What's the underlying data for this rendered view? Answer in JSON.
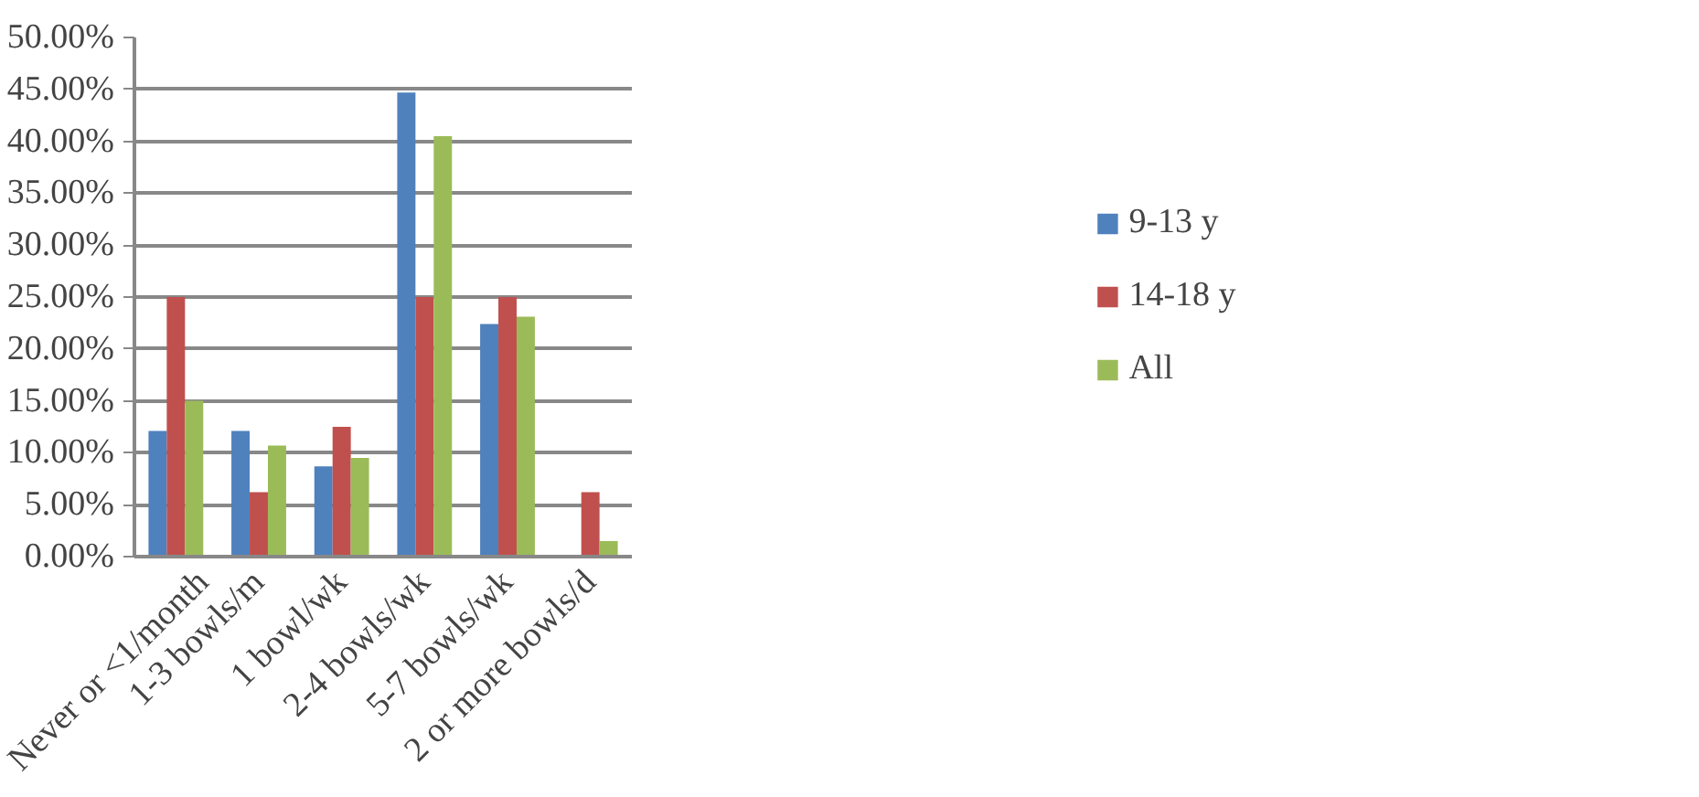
{
  "chart_data": {
    "type": "bar",
    "categories": [
      "Never or <1/month",
      "1-3 bowls/m",
      "1 bowl/wk",
      "2-4 bowls/wk",
      "5-7 bowls/wk",
      "2 or more bowls/d"
    ],
    "series": [
      {
        "name": "9-13 y",
        "color": "#4f81bd",
        "values": [
          12.1,
          12.1,
          8.7,
          44.7,
          22.4,
          0
        ]
      },
      {
        "name": "14-18 y",
        "color": "#c0504d",
        "values": [
          25,
          6.2,
          12.5,
          25,
          25,
          6.2
        ]
      },
      {
        "name": "All",
        "color": "#9bbb59",
        "values": [
          15,
          10.7,
          9.5,
          40.5,
          23.1,
          1.5
        ]
      }
    ],
    "ylim": [
      0,
      50
    ],
    "yticks": [
      {
        "value": 0,
        "label": "0.00%"
      },
      {
        "value": 5,
        "label": "5.00%"
      },
      {
        "value": 10,
        "label": "10.00%"
      },
      {
        "value": 15,
        "label": "15.00%"
      },
      {
        "value": 20,
        "label": "20.00%"
      },
      {
        "value": 25,
        "label": "25.00%"
      },
      {
        "value": 30,
        "label": "30.00%"
      },
      {
        "value": 35,
        "label": "35.00%"
      },
      {
        "value": 40,
        "label": "40.00%"
      },
      {
        "value": 45,
        "label": "45.00%"
      },
      {
        "value": 50,
        "label": "50.00%"
      }
    ],
    "grid": "y",
    "legend": "right"
  }
}
